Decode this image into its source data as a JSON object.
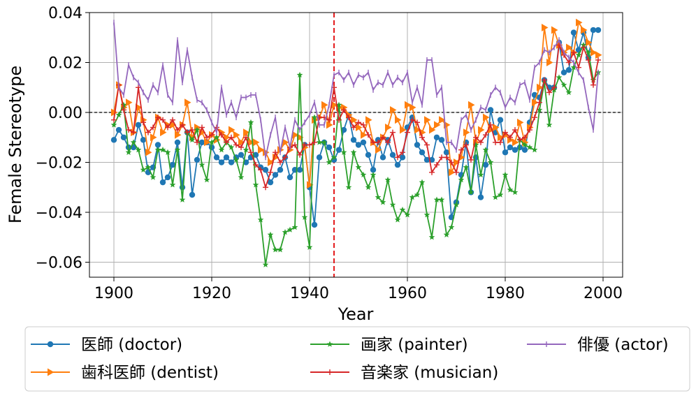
{
  "chart_data": {
    "type": "line",
    "xlabel": "Year",
    "ylabel": "Female Stereotype",
    "xlim": [
      1895,
      2004
    ],
    "ylim": [
      -0.066,
      0.04
    ],
    "xticks": [
      1900,
      1920,
      1940,
      1960,
      1980,
      2000
    ],
    "yticks": [
      -0.06,
      -0.04,
      -0.02,
      0.0,
      0.02,
      0.04
    ],
    "ytick_labels": [
      "−0.06",
      "−0.04",
      "−0.02",
      "0.00",
      "0.02",
      "0.04"
    ],
    "grid": true,
    "reference_lines": {
      "horizontal_zero": {
        "y": 0.0,
        "color": "#000000",
        "style": "dashed"
      },
      "vertical_event": {
        "x": 1945,
        "color": "#e41a1c",
        "style": "dashed"
      }
    },
    "legend_position": "bottom",
    "series": [
      {
        "name": "医師 (doctor)",
        "color": "#1f77b4",
        "marker": "circle",
        "x": [
          1900,
          1901,
          1902,
          1903,
          1904,
          1905,
          1906,
          1907,
          1908,
          1909,
          1910,
          1911,
          1912,
          1913,
          1914,
          1915,
          1916,
          1917,
          1918,
          1919,
          1920,
          1921,
          1922,
          1923,
          1924,
          1925,
          1926,
          1927,
          1928,
          1929,
          1930,
          1931,
          1932,
          1933,
          1934,
          1935,
          1936,
          1937,
          1938,
          1939,
          1940,
          1941,
          1942,
          1943,
          1944,
          1945,
          1946,
          1947,
          1948,
          1949,
          1950,
          1951,
          1952,
          1953,
          1954,
          1955,
          1956,
          1957,
          1958,
          1959,
          1960,
          1961,
          1962,
          1963,
          1964,
          1965,
          1966,
          1967,
          1968,
          1969,
          1970,
          1971,
          1972,
          1973,
          1974,
          1975,
          1976,
          1977,
          1978,
          1979,
          1980,
          1981,
          1982,
          1983,
          1984,
          1985,
          1986,
          1987,
          1988,
          1989,
          1990,
          1991,
          1992,
          1993,
          1994,
          1995,
          1996,
          1997,
          1998,
          1999
        ],
        "values": [
          -0.011,
          -0.007,
          -0.01,
          -0.014,
          -0.014,
          -0.005,
          -0.011,
          -0.024,
          -0.022,
          -0.013,
          -0.028,
          -0.026,
          -0.021,
          -0.012,
          -0.03,
          -0.008,
          -0.033,
          -0.019,
          -0.012,
          -0.012,
          -0.014,
          -0.018,
          -0.02,
          -0.018,
          -0.02,
          -0.018,
          -0.017,
          -0.02,
          -0.018,
          -0.017,
          -0.022,
          -0.023,
          -0.028,
          -0.025,
          -0.023,
          -0.018,
          -0.026,
          -0.023,
          -0.023,
          -0.013,
          -0.03,
          -0.045,
          -0.018,
          -0.012,
          -0.014,
          -0.019,
          -0.015,
          -0.007,
          -0.001,
          -0.011,
          -0.013,
          -0.012,
          -0.017,
          -0.023,
          -0.011,
          -0.018,
          -0.011,
          -0.017,
          -0.021,
          -0.018,
          -0.006,
          -0.002,
          -0.013,
          -0.016,
          -0.019,
          -0.019,
          -0.01,
          -0.011,
          -0.016,
          -0.042,
          -0.036,
          -0.025,
          -0.012,
          -0.032,
          -0.018,
          -0.034,
          -0.021,
          0.001,
          -0.008,
          -0.003,
          -0.016,
          -0.014,
          -0.015,
          -0.014,
          -0.015,
          -0.004,
          0.007,
          0.006,
          0.013,
          0.01,
          0.01,
          0.028,
          0.016,
          0.017,
          0.032,
          0.025,
          0.032,
          0.022,
          0.033,
          0.033
        ]
      },
      {
        "name": "歯科医師 (dentist)",
        "color": "#ff7f0e",
        "marker": "triangle-right",
        "x": [
          1900,
          1901,
          1902,
          1903,
          1904,
          1905,
          1906,
          1907,
          1908,
          1909,
          1910,
          1911,
          1912,
          1913,
          1914,
          1915,
          1916,
          1917,
          1918,
          1919,
          1920,
          1921,
          1922,
          1923,
          1924,
          1925,
          1926,
          1927,
          1928,
          1929,
          1930,
          1931,
          1932,
          1933,
          1934,
          1935,
          1936,
          1937,
          1938,
          1939,
          1940,
          1941,
          1942,
          1943,
          1944,
          1945,
          1946,
          1947,
          1948,
          1949,
          1950,
          1951,
          1952,
          1953,
          1954,
          1955,
          1956,
          1957,
          1958,
          1959,
          1960,
          1961,
          1962,
          1963,
          1964,
          1965,
          1966,
          1967,
          1968,
          1969,
          1970,
          1971,
          1972,
          1973,
          1974,
          1975,
          1976,
          1977,
          1978,
          1979,
          1980,
          1981,
          1982,
          1983,
          1984,
          1985,
          1986,
          1987,
          1988,
          1989,
          1990,
          1991,
          1992,
          1993,
          1994,
          1995,
          1996,
          1997,
          1998,
          1999
        ],
        "values": [
          0.0,
          0.011,
          0.002,
          0.004,
          -0.008,
          0.002,
          -0.003,
          -0.016,
          -0.01,
          -0.002,
          -0.008,
          -0.005,
          -0.005,
          -0.009,
          -0.005,
          0.004,
          -0.01,
          -0.006,
          -0.008,
          -0.012,
          -0.009,
          -0.011,
          -0.008,
          -0.01,
          -0.007,
          -0.009,
          -0.012,
          -0.008,
          -0.012,
          -0.012,
          -0.015,
          -0.016,
          -0.02,
          -0.018,
          -0.015,
          -0.012,
          -0.015,
          -0.009,
          -0.01,
          -0.014,
          -0.029,
          -0.003,
          -0.002,
          0.003,
          -0.005,
          0.003,
          0.002,
          0.002,
          -0.001,
          -0.003,
          -0.006,
          -0.009,
          -0.003,
          -0.012,
          -0.015,
          -0.01,
          -0.006,
          0.001,
          -0.003,
          -0.007,
          0.003,
          0.002,
          -0.007,
          -0.008,
          -0.003,
          -0.007,
          -0.005,
          -0.003,
          -0.005,
          -0.024,
          -0.02,
          -0.018,
          -0.008,
          0.003,
          -0.012,
          -0.007,
          -0.002,
          -0.007,
          -0.006,
          -0.01,
          -0.009,
          -0.011,
          -0.012,
          -0.004,
          -0.012,
          -0.006,
          0.004,
          0.01,
          0.034,
          0.02,
          0.033,
          0.027,
          0.024,
          0.026,
          0.024,
          0.036,
          0.033,
          0.028,
          0.024,
          0.023
        ]
      },
      {
        "name": "画家 (painter)",
        "color": "#2ca02c",
        "marker": "star",
        "x": [
          1900,
          1901,
          1902,
          1903,
          1904,
          1905,
          1906,
          1907,
          1908,
          1909,
          1910,
          1911,
          1912,
          1913,
          1914,
          1915,
          1916,
          1917,
          1918,
          1919,
          1920,
          1921,
          1922,
          1923,
          1924,
          1925,
          1926,
          1927,
          1928,
          1929,
          1930,
          1931,
          1932,
          1933,
          1934,
          1935,
          1936,
          1937,
          1938,
          1939,
          1940,
          1941,
          1942,
          1943,
          1944,
          1945,
          1946,
          1947,
          1948,
          1949,
          1950,
          1951,
          1952,
          1953,
          1954,
          1955,
          1956,
          1957,
          1958,
          1959,
          1960,
          1961,
          1962,
          1963,
          1964,
          1965,
          1966,
          1967,
          1968,
          1969,
          1970,
          1971,
          1972,
          1973,
          1974,
          1975,
          1976,
          1977,
          1978,
          1979,
          1980,
          1981,
          1982,
          1983,
          1984,
          1985,
          1986,
          1987,
          1988,
          1989,
          1990,
          1991,
          1992,
          1993,
          1994,
          1995,
          1996,
          1997,
          1998,
          1999
        ],
        "values": [
          -0.005,
          -0.001,
          0.003,
          -0.016,
          -0.012,
          -0.015,
          -0.023,
          -0.022,
          -0.026,
          -0.015,
          -0.015,
          -0.016,
          -0.029,
          -0.015,
          -0.035,
          -0.008,
          -0.011,
          -0.007,
          -0.021,
          -0.027,
          -0.012,
          -0.01,
          -0.015,
          -0.012,
          -0.014,
          -0.019,
          -0.026,
          -0.015,
          -0.004,
          -0.029,
          -0.043,
          -0.061,
          -0.049,
          -0.055,
          -0.055,
          -0.048,
          -0.047,
          -0.046,
          0.015,
          -0.042,
          -0.054,
          -0.002,
          -0.012,
          -0.012,
          -0.02,
          -0.018,
          0.003,
          -0.016,
          -0.03,
          -0.016,
          -0.022,
          -0.025,
          -0.03,
          -0.025,
          -0.034,
          -0.036,
          -0.027,
          -0.037,
          -0.043,
          -0.039,
          -0.041,
          -0.034,
          -0.033,
          -0.028,
          -0.041,
          -0.05,
          -0.035,
          -0.035,
          -0.049,
          -0.046,
          -0.037,
          -0.027,
          -0.022,
          -0.032,
          -0.013,
          -0.025,
          -0.015,
          -0.02,
          -0.034,
          -0.033,
          -0.025,
          -0.031,
          -0.032,
          -0.011,
          -0.013,
          -0.014,
          -0.015,
          0.001,
          0.012,
          -0.005,
          0.009,
          0.014,
          0.011,
          0.008,
          0.018,
          0.023,
          0.027,
          0.024,
          0.013,
          0.016
        ]
      },
      {
        "name": "音楽家 (musician)",
        "color": "#d62728",
        "marker": "plus",
        "x": [
          1900,
          1901,
          1902,
          1903,
          1904,
          1905,
          1906,
          1907,
          1908,
          1909,
          1910,
          1911,
          1912,
          1913,
          1914,
          1915,
          1916,
          1917,
          1918,
          1919,
          1920,
          1921,
          1922,
          1923,
          1924,
          1925,
          1926,
          1927,
          1928,
          1929,
          1930,
          1931,
          1932,
          1933,
          1934,
          1935,
          1936,
          1937,
          1938,
          1939,
          1940,
          1941,
          1942,
          1943,
          1944,
          1945,
          1946,
          1947,
          1948,
          1949,
          1950,
          1951,
          1952,
          1953,
          1954,
          1955,
          1956,
          1957,
          1958,
          1959,
          1960,
          1961,
          1962,
          1963,
          1964,
          1965,
          1966,
          1967,
          1968,
          1969,
          1970,
          1971,
          1972,
          1973,
          1974,
          1975,
          1976,
          1977,
          1978,
          1979,
          1980,
          1981,
          1982,
          1983,
          1984,
          1985,
          1986,
          1987,
          1988,
          1989,
          1990,
          1991,
          1992,
          1993,
          1994,
          1995,
          1996,
          1997,
          1998,
          1999
        ],
        "values": [
          -0.003,
          0.011,
          0.001,
          -0.007,
          -0.008,
          0.01,
          -0.004,
          -0.008,
          -0.006,
          -0.002,
          -0.003,
          -0.006,
          -0.003,
          -0.007,
          -0.005,
          -0.008,
          -0.007,
          -0.012,
          -0.006,
          -0.01,
          -0.009,
          -0.006,
          -0.009,
          -0.012,
          -0.01,
          -0.013,
          -0.014,
          -0.01,
          -0.016,
          -0.021,
          -0.023,
          -0.03,
          -0.024,
          -0.016,
          -0.02,
          -0.018,
          -0.014,
          -0.013,
          -0.017,
          -0.013,
          -0.013,
          -0.012,
          -0.002,
          -0.002,
          -0.003,
          0.01,
          -0.003,
          0.001,
          -0.002,
          -0.006,
          -0.004,
          -0.005,
          -0.009,
          -0.012,
          -0.012,
          -0.01,
          -0.012,
          -0.008,
          -0.018,
          -0.016,
          -0.008,
          -0.003,
          -0.004,
          -0.01,
          -0.013,
          -0.024,
          -0.021,
          -0.018,
          -0.018,
          -0.02,
          -0.024,
          -0.015,
          -0.013,
          -0.019,
          -0.01,
          -0.012,
          -0.009,
          -0.005,
          -0.012,
          -0.012,
          -0.008,
          -0.01,
          -0.007,
          -0.011,
          -0.01,
          -0.007,
          -0.002,
          0.004,
          0.013,
          0.008,
          0.01,
          0.027,
          0.023,
          0.02,
          0.024,
          0.018,
          0.026,
          0.021,
          0.011,
          0.021
        ]
      },
      {
        "name": "俳優 (actor)",
        "color": "#9467bd",
        "marker": "vline",
        "x": [
          1900,
          1901,
          1902,
          1903,
          1904,
          1905,
          1906,
          1907,
          1908,
          1909,
          1910,
          1911,
          1912,
          1913,
          1914,
          1915,
          1916,
          1917,
          1918,
          1919,
          1920,
          1921,
          1922,
          1923,
          1924,
          1925,
          1926,
          1927,
          1928,
          1929,
          1930,
          1931,
          1932,
          1933,
          1934,
          1935,
          1936,
          1937,
          1938,
          1939,
          1940,
          1941,
          1942,
          1943,
          1944,
          1945,
          1946,
          1947,
          1948,
          1949,
          1950,
          1951,
          1952,
          1953,
          1954,
          1955,
          1956,
          1957,
          1958,
          1959,
          1960,
          1961,
          1962,
          1963,
          1964,
          1965,
          1966,
          1967,
          1968,
          1969,
          1970,
          1971,
          1972,
          1973,
          1974,
          1975,
          1976,
          1977,
          1978,
          1979,
          1980,
          1981,
          1982,
          1983,
          1984,
          1985,
          1986,
          1987,
          1988,
          1989,
          1990,
          1991,
          1992,
          1993,
          1994,
          1995,
          1996,
          1997,
          1998,
          1999
        ],
        "values": [
          0.036,
          0.01,
          0.007,
          0.019,
          0.014,
          0.012,
          0.008,
          0.005,
          0.011,
          0.008,
          0.019,
          0.007,
          0.004,
          0.029,
          0.012,
          0.025,
          0.014,
          0.005,
          0.004,
          0.001,
          -0.004,
          -0.008,
          0.01,
          -0.001,
          0.004,
          -0.002,
          0.006,
          0.006,
          0.007,
          0.007,
          -0.003,
          -0.018,
          -0.009,
          -0.002,
          -0.016,
          -0.006,
          -0.014,
          -0.003,
          -0.007,
          -0.004,
          -0.001,
          0.004,
          -0.005,
          -0.005,
          0.003,
          0.015,
          0.016,
          0.013,
          0.016,
          0.011,
          0.015,
          0.014,
          0.016,
          0.009,
          0.012,
          0.011,
          0.016,
          0.011,
          0.014,
          0.012,
          0.016,
          0.004,
          0.01,
          0.003,
          0.021,
          0.021,
          0.007,
          0.01,
          -0.012,
          -0.012,
          -0.015,
          -0.003,
          -0.001,
          -0.007,
          -0.003,
          0.002,
          0.001,
          0.007,
          0.01,
          0.008,
          0.002,
          0.006,
          0.004,
          0.011,
          0.012,
          0.005,
          0.018,
          0.02,
          0.025,
          0.024,
          0.026,
          0.029,
          0.024,
          0.022,
          0.02,
          0.016,
          0.013,
          0.002,
          -0.007,
          0.016
        ]
      }
    ]
  }
}
